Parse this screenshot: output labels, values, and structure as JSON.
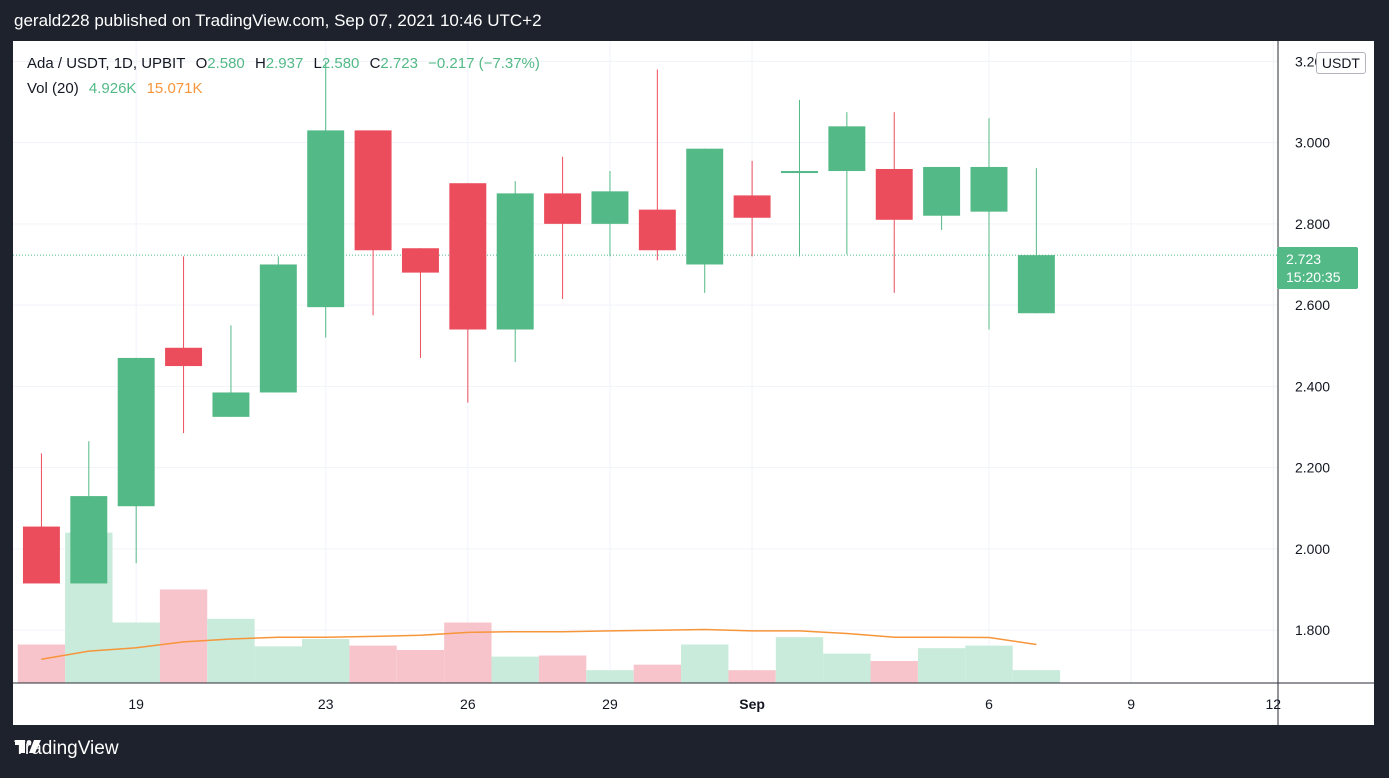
{
  "header": {
    "publisher_line": "gerald228 published on TradingView.com, Sep 07, 2021 10:46 UTC+2"
  },
  "legend": {
    "symbol": "Ada / USDT, 1D, UPBIT",
    "o_label": "O",
    "o_value": "2.580",
    "h_label": "H",
    "h_value": "2.937",
    "l_label": "L",
    "l_value": "2.580",
    "c_label": "C",
    "c_value": "2.723",
    "change": "−0.217 (−7.37%)",
    "vol_label": "Vol (20)",
    "vol_value": "4.926K",
    "vol_ma_value": "15.071K"
  },
  "currency_badge": "USDT",
  "last_price_tag": {
    "price": "2.723",
    "countdown": "15:20:35"
  },
  "footer": {
    "brand": "TradingView"
  },
  "colors": {
    "up": "#53b987",
    "down": "#eb4d5c",
    "up_vol": "#c8ebdb",
    "down_vol": "#f8c4cc",
    "vol_ma": "#f7953a",
    "background": "#1e222d"
  },
  "chart_data": {
    "type": "candlestick",
    "y_axis_side": "right",
    "ylim": [
      1.67,
      3.25
    ],
    "y_ticks": [
      {
        "value": 1.8,
        "label": "1.800"
      },
      {
        "value": 2.0,
        "label": "2.000"
      },
      {
        "value": 2.2,
        "label": "2.200"
      },
      {
        "value": 2.4,
        "label": "2.400"
      },
      {
        "value": 2.6,
        "label": "2.600"
      },
      {
        "value": 2.8,
        "label": "2.800"
      },
      {
        "value": 3.0,
        "label": "3.000"
      },
      {
        "value": 3.2,
        "label": "3.200"
      }
    ],
    "x_ticks": [
      {
        "index": 2,
        "label": "19"
      },
      {
        "index": 6,
        "label": "23"
      },
      {
        "index": 9,
        "label": "26"
      },
      {
        "index": 12,
        "label": "29"
      },
      {
        "index": 15,
        "label": "Sep"
      },
      {
        "index": 20,
        "label": "6"
      },
      {
        "index": 23,
        "label": "9"
      },
      {
        "index": 26,
        "label": "12"
      }
    ],
    "x_range": [
      -0.6,
      26.1
    ],
    "grid": true,
    "candles": [
      {
        "o": 2.055,
        "h": 2.235,
        "l": 1.915,
        "c": 1.915
      },
      {
        "o": 1.915,
        "h": 2.265,
        "l": 1.915,
        "c": 2.13
      },
      {
        "o": 2.105,
        "h": 2.47,
        "l": 1.965,
        "c": 2.47
      },
      {
        "o": 2.495,
        "h": 2.72,
        "l": 2.285,
        "c": 2.45
      },
      {
        "o": 2.325,
        "h": 2.55,
        "l": 2.325,
        "c": 2.385
      },
      {
        "o": 2.385,
        "h": 2.72,
        "l": 2.385,
        "c": 2.7
      },
      {
        "o": 2.595,
        "h": 3.2,
        "l": 2.52,
        "c": 3.03
      },
      {
        "o": 3.03,
        "h": 3.03,
        "l": 2.575,
        "c": 2.735
      },
      {
        "o": 2.74,
        "h": 2.74,
        "l": 2.47,
        "c": 2.68
      },
      {
        "o": 2.9,
        "h": 2.9,
        "l": 2.36,
        "c": 2.54
      },
      {
        "o": 2.54,
        "h": 2.905,
        "l": 2.46,
        "c": 2.875
      },
      {
        "o": 2.875,
        "h": 2.965,
        "l": 2.615,
        "c": 2.8
      },
      {
        "o": 2.8,
        "h": 2.93,
        "l": 2.72,
        "c": 2.88
      },
      {
        "o": 2.835,
        "h": 3.18,
        "l": 2.71,
        "c": 2.735
      },
      {
        "o": 2.7,
        "h": 2.985,
        "l": 2.63,
        "c": 2.985
      },
      {
        "o": 2.87,
        "h": 2.955,
        "l": 2.72,
        "c": 2.815
      },
      {
        "o": 2.925,
        "h": 3.105,
        "l": 2.72,
        "c": 2.93
      },
      {
        "o": 2.93,
        "h": 3.075,
        "l": 2.725,
        "c": 3.04
      },
      {
        "o": 2.935,
        "h": 3.075,
        "l": 2.63,
        "c": 2.81
      },
      {
        "o": 2.82,
        "h": 2.94,
        "l": 2.785,
        "c": 2.94
      },
      {
        "o": 2.83,
        "h": 3.06,
        "l": 2.54,
        "c": 2.94
      },
      {
        "o": 2.58,
        "h": 2.937,
        "l": 2.58,
        "c": 2.723
      }
    ],
    "volume_max": 45.0,
    "volumes": [
      10.5,
      41.0,
      16.5,
      25.5,
      17.5,
      10.0,
      12.0,
      10.2,
      9.0,
      16.5,
      7.2,
      7.5,
      3.5,
      5.0,
      10.5,
      3.5,
      12.5,
      8.0,
      6.0,
      9.5,
      10.2,
      3.5
    ],
    "volume_ma": [
      6.5,
      8.7,
      9.6,
      11.2,
      12.0,
      12.5,
      12.5,
      12.7,
      13.0,
      13.8,
      14.0,
      14.0,
      14.2,
      14.4,
      14.6,
      14.2,
      14.2,
      13.5,
      12.5,
      12.5,
      12.4,
      10.5
    ]
  }
}
